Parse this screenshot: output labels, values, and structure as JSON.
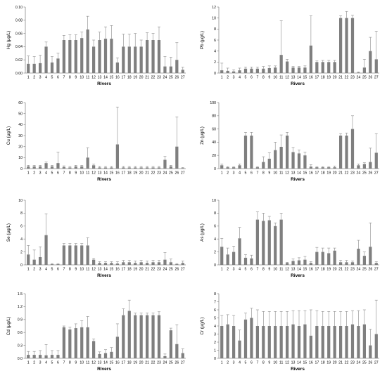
{
  "chart_data": [
    {
      "type": "bar",
      "xlabel": "Rivers",
      "ylabel": "Hg (μg/L)",
      "ylim": [
        0,
        0.1
      ],
      "yticks": [
        "0.00",
        "0.02",
        "0.04",
        "0.06",
        "0.08",
        "0.10"
      ],
      "categories": [
        "1",
        "2",
        "3",
        "4",
        "5",
        "6",
        "7",
        "8",
        "9",
        "10",
        "11",
        "12",
        "13",
        "14",
        "15",
        "16",
        "17",
        "18",
        "19",
        "20",
        "21",
        "22",
        "23",
        "24",
        "25",
        "26",
        "27"
      ],
      "values": [
        0.014,
        0.014,
        0.015,
        0.04,
        0.016,
        0.022,
        0.05,
        0.05,
        0.05,
        0.053,
        0.066,
        0.04,
        0.05,
        0.052,
        0.052,
        0.016,
        0.04,
        0.04,
        0.04,
        0.04,
        0.05,
        0.05,
        0.05,
        0.01,
        0.01,
        0.02,
        0.005
      ],
      "errors": [
        0.012,
        0.011,
        0.012,
        0.007,
        0.009,
        0.008,
        0.007,
        0.008,
        0.008,
        0.009,
        0.02,
        0.01,
        0.012,
        0.018,
        0.02,
        0.007,
        0.019,
        0.019,
        0.02,
        0.01,
        0.011,
        0.01,
        0.02,
        0.015,
        0.014,
        0.026,
        0.004
      ],
      "grid": false,
      "legend": "none"
    },
    {
      "type": "bar",
      "xlabel": "Rivers",
      "ylabel": "Pb (μg/L)",
      "ylim": [
        0,
        12
      ],
      "yticks": [
        "0",
        "2",
        "4",
        "6",
        "8",
        "10",
        "12"
      ],
      "categories": [
        "1",
        "2",
        "3",
        "4",
        "5",
        "6",
        "7",
        "8",
        "9",
        "10",
        "11",
        "12",
        "13",
        "14",
        "15",
        "16",
        "17",
        "18",
        "19",
        "20",
        "21",
        "22",
        "23",
        "24",
        "25",
        "26",
        "27"
      ],
      "values": [
        0.5,
        0.4,
        0.3,
        0.5,
        0.8,
        0.8,
        0.8,
        0.8,
        0.9,
        1.0,
        3.3,
        2.1,
        1.0,
        1.0,
        1.0,
        5.0,
        2.0,
        2.0,
        2.0,
        2.0,
        10.0,
        10.0,
        10.0,
        0.1,
        1.0,
        4.0,
        2.5
      ],
      "errors": [
        1.3,
        0.5,
        0.3,
        0.4,
        0.3,
        0.3,
        0.3,
        0.4,
        0.4,
        0.3,
        6.2,
        0.4,
        0.2,
        0.2,
        0.3,
        5.4,
        0.2,
        0.3,
        0.3,
        0.3,
        0.4,
        1.2,
        0.5,
        0.1,
        1.5,
        2.5,
        5.1
      ],
      "grid": false,
      "legend": "none"
    },
    {
      "type": "bar",
      "xlabel": "Rivers",
      "ylabel": "Cu (μg/L)",
      "ylim": [
        0,
        60
      ],
      "yticks": [
        "0",
        "10",
        "20",
        "30",
        "40",
        "50",
        "60"
      ],
      "categories": [
        "1",
        "2",
        "3",
        "4",
        "5",
        "6",
        "7",
        "8",
        "9",
        "10",
        "11",
        "12",
        "13",
        "14",
        "15",
        "16",
        "17",
        "18",
        "19",
        "20",
        "21",
        "22",
        "23",
        "24",
        "25",
        "26",
        "27"
      ],
      "values": [
        2,
        2,
        2,
        5,
        2,
        5,
        1.5,
        1,
        2,
        2,
        10,
        3,
        1,
        1,
        1,
        22,
        1,
        1,
        1,
        1,
        1,
        1,
        1,
        8,
        2,
        20,
        0.5
      ],
      "errors": [
        1,
        1,
        1,
        1,
        1,
        10,
        1,
        1,
        1,
        1,
        9,
        1,
        1,
        1,
        1,
        34,
        1,
        1,
        1,
        1,
        1,
        1,
        1,
        3,
        1,
        27,
        0.5
      ],
      "grid": false,
      "legend": "none"
    },
    {
      "type": "bar",
      "xlabel": "Rivers",
      "ylabel": "Zn (μg/L)",
      "ylim": [
        0,
        100
      ],
      "yticks": [
        "0",
        "20",
        "40",
        "60",
        "80",
        "100"
      ],
      "categories": [
        "1",
        "2",
        "3",
        "4",
        "5",
        "6",
        "7",
        "8",
        "9",
        "10",
        "11",
        "12",
        "13",
        "14",
        "15",
        "16",
        "17",
        "18",
        "19",
        "20",
        "21",
        "22",
        "23",
        "24",
        "25",
        "26",
        "27"
      ],
      "values": [
        5,
        2,
        2,
        5,
        50,
        50,
        2,
        10,
        15,
        28,
        33,
        50,
        25,
        23,
        20,
        3,
        2,
        2,
        2,
        2,
        50,
        50,
        60,
        5,
        7,
        10,
        24
      ],
      "errors": [
        2,
        1,
        1,
        2,
        5,
        5,
        1,
        8,
        9,
        12,
        18,
        5,
        7,
        5,
        5,
        3,
        1,
        1,
        1,
        2,
        3,
        4,
        20,
        2,
        2,
        21,
        29
      ],
      "grid": false,
      "legend": "none"
    },
    {
      "type": "bar",
      "xlabel": "Rivers",
      "ylabel": "Se (μg/L)",
      "ylim": [
        0,
        10
      ],
      "yticks": [
        "0",
        "2",
        "4",
        "6",
        "8",
        "10"
      ],
      "categories": [
        "1",
        "2",
        "3",
        "4",
        "5",
        "6",
        "7",
        "8",
        "9",
        "10",
        "11",
        "12",
        "13",
        "14",
        "15",
        "16",
        "17",
        "18",
        "19",
        "20",
        "21",
        "22",
        "23",
        "24",
        "25",
        "26",
        "27"
      ],
      "values": [
        1.6,
        0.8,
        1.2,
        4.6,
        0.1,
        0.1,
        3.0,
        3.0,
        3.0,
        3.0,
        3.0,
        0.8,
        0.3,
        0.3,
        0.3,
        0.2,
        0.4,
        0.4,
        0.3,
        0.4,
        0.3,
        0.4,
        0.4,
        0.8,
        0.4,
        0.1,
        0.3
      ],
      "errors": [
        1.4,
        1.5,
        1.6,
        3.3,
        0.1,
        0.1,
        0.3,
        0.3,
        0.3,
        0.3,
        1.2,
        0.2,
        0.2,
        0.2,
        0.2,
        0.3,
        0.3,
        0.3,
        0.3,
        0.3,
        0.3,
        0.3,
        0.3,
        1.1,
        0.5,
        0.1,
        0.3
      ],
      "grid": false,
      "legend": "none"
    },
    {
      "type": "bar",
      "xlabel": "Rivers",
      "ylabel": "As (μg/L)",
      "ylim": [
        0,
        10
      ],
      "yticks": [
        "0",
        "2",
        "4",
        "6",
        "8",
        "10"
      ],
      "categories": [
        "1",
        "2",
        "3",
        "4",
        "5",
        "6",
        "7",
        "8",
        "9",
        "10",
        "11",
        "12",
        "13",
        "14",
        "15",
        "16",
        "17",
        "18",
        "19",
        "20",
        "21",
        "22",
        "23",
        "24",
        "25",
        "26",
        "27"
      ],
      "values": [
        2.8,
        1.6,
        2.0,
        4.1,
        1.1,
        1.0,
        7.0,
        6.8,
        6.9,
        6.0,
        7.0,
        0.3,
        0.6,
        0.7,
        0.8,
        0.3,
        2.0,
        2.0,
        1.8,
        2.2,
        0.4,
        0.4,
        0.4,
        2.5,
        1.4,
        2.8,
        0.3
      ],
      "errors": [
        1.3,
        1.0,
        0.9,
        1.7,
        0.5,
        0.5,
        1.2,
        1.2,
        0.6,
        0.5,
        1.0,
        0.1,
        0.3,
        0.4,
        0.5,
        0.2,
        0.7,
        0.6,
        0.8,
        0.4,
        0.3,
        0.3,
        0.2,
        1.3,
        0.6,
        3.7,
        0.2
      ],
      "grid": false,
      "legend": "none"
    },
    {
      "type": "bar",
      "xlabel": "Rivers",
      "ylabel": "Cd (μg/L)",
      "ylim": [
        0,
        1.5
      ],
      "yticks": [
        "0.0",
        "0.3",
        "0.6",
        "0.9",
        "1.2",
        "1.5"
      ],
      "categories": [
        "1",
        "2",
        "3",
        "4",
        "5",
        "6",
        "7",
        "8",
        "9",
        "10",
        "11",
        "12",
        "13",
        "14",
        "15",
        "16",
        "17",
        "18",
        "19",
        "20",
        "21",
        "22",
        "23",
        "24",
        "25",
        "26",
        "27"
      ],
      "values": [
        0.08,
        0.08,
        0.08,
        0.07,
        0.08,
        0.08,
        0.72,
        0.67,
        0.7,
        0.72,
        0.72,
        0.4,
        0.1,
        0.12,
        0.15,
        0.5,
        1.0,
        1.1,
        1.0,
        1.0,
        1.0,
        1.0,
        1.0,
        0.05,
        0.65,
        0.33,
        0.12
      ],
      "errors": [
        0.08,
        0.08,
        0.1,
        0.25,
        0.1,
        0.1,
        0.03,
        0.05,
        0.1,
        0.15,
        0.25,
        0.05,
        0.05,
        0.08,
        0.1,
        0.3,
        0.15,
        0.25,
        0.05,
        0.05,
        0.05,
        0.05,
        0.08,
        0.05,
        0.05,
        0.45,
        0.1
      ],
      "grid": false,
      "legend": "none"
    },
    {
      "type": "bar",
      "xlabel": "Rivers",
      "ylabel": "Cr (μg/L)",
      "ylim": [
        0,
        8
      ],
      "yticks": [
        "0",
        "1",
        "2",
        "3",
        "4",
        "5",
        "6",
        "7",
        "8"
      ],
      "categories": [
        "1",
        "2",
        "3",
        "4",
        "5",
        "6",
        "7",
        "8",
        "9",
        "10",
        "11",
        "12",
        "13",
        "14",
        "15",
        "16",
        "17",
        "18",
        "19",
        "20",
        "21",
        "22",
        "23",
        "24",
        "25",
        "26",
        "27"
      ],
      "values": [
        4.0,
        4.2,
        4.0,
        2.2,
        4.8,
        5.0,
        4.0,
        4.0,
        4.0,
        4.0,
        4.0,
        4.0,
        4.2,
        4.0,
        4.2,
        2.8,
        4.0,
        4.0,
        4.0,
        4.0,
        4.0,
        4.0,
        4.2,
        4.0,
        4.2,
        1.6,
        3.0
      ],
      "errors": [
        1.3,
        1.2,
        1.3,
        1.3,
        0.8,
        1.2,
        2.0,
        1.8,
        1.8,
        1.8,
        1.8,
        1.8,
        1.7,
        1.9,
        1.7,
        3.2,
        1.9,
        1.8,
        1.8,
        1.8,
        1.8,
        1.8,
        1.7,
        1.9,
        1.8,
        2.0,
        4.2
      ],
      "grid": false,
      "legend": "none"
    }
  ]
}
